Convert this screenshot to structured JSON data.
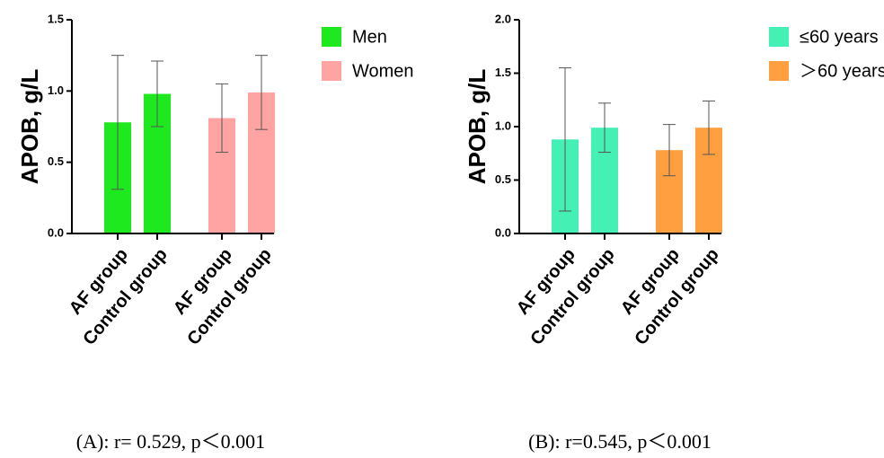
{
  "chart_data": [
    {
      "type": "bar",
      "ylabel": "APOB, g/L",
      "caption": "(A): r= 0.529, p＜0.001",
      "categories": [
        "AF group",
        "Control group",
        "AF group",
        "Control group"
      ],
      "series": [
        {
          "name": "Men",
          "color": "#1ee81e",
          "values": [
            0.78,
            0.98,
            null,
            null
          ],
          "errors": [
            0.47,
            0.23,
            null,
            null
          ]
        },
        {
          "name": "Women",
          "color": "#ffa3a3",
          "values": [
            null,
            null,
            0.81,
            0.99
          ],
          "errors": [
            null,
            null,
            0.24,
            0.26
          ]
        }
      ],
      "ylim": [
        0,
        1.5
      ],
      "yticks": [
        {
          "value": 0,
          "label": "0.0"
        },
        0.5,
        {
          "value": 1,
          "label": "1.0"
        },
        1.5
      ],
      "legend": "right"
    },
    {
      "type": "bar",
      "ylabel": "APOB, g/L",
      "caption": "(B): r=0.545, p＜0.001",
      "categories": [
        "AF group",
        "Control group",
        "AF group",
        "Control group"
      ],
      "series": [
        {
          "name": "≤60 years",
          "color": "#45f0b4",
          "values": [
            0.88,
            0.99,
            null,
            null
          ],
          "errors": [
            0.67,
            0.23,
            null,
            null
          ]
        },
        {
          "name": "＞60 years",
          "color": "#ff9f40",
          "values": [
            null,
            null,
            0.78,
            0.99
          ],
          "errors": [
            null,
            null,
            0.24,
            0.25
          ]
        }
      ],
      "ylim": [
        0,
        2
      ],
      "yticks": [
        {
          "value": 0,
          "label": "0.0"
        },
        0.5,
        {
          "value": 1,
          "label": "1.0"
        },
        1.5,
        {
          "value": 2,
          "label": "2.0"
        }
      ],
      "legend": "right"
    }
  ]
}
